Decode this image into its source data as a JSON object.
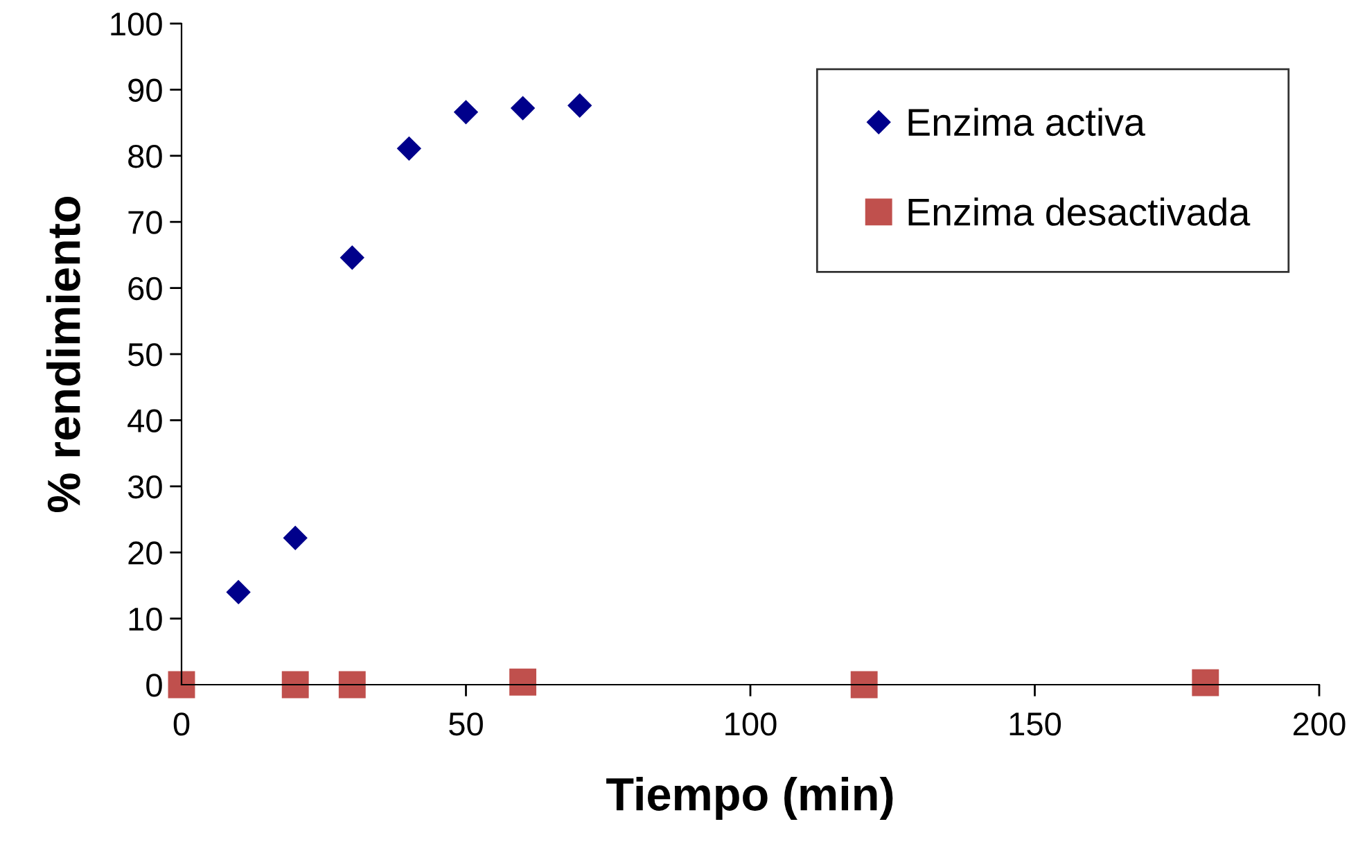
{
  "chart_data": {
    "type": "scatter",
    "xlabel": "Tiempo (min)",
    "ylabel": "% rendimiento",
    "series": [
      {
        "name": "Enzima activa",
        "color": "#00008b",
        "marker": "diamond",
        "x": [
          10,
          20,
          30,
          40,
          50,
          60,
          70
        ],
        "values": [
          14.0,
          22.2,
          64.6,
          81.1,
          86.6,
          87.2,
          87.6
        ]
      },
      {
        "name": "Enzima desactivada",
        "color": "#c0504d",
        "marker": "square",
        "x": [
          0,
          20,
          30,
          60,
          120,
          180
        ],
        "values": [
          0,
          0,
          0,
          0.4,
          0,
          0.3
        ]
      }
    ],
    "xlim": [
      0,
      200
    ],
    "xticks": [
      0,
      50,
      100,
      150,
      200
    ],
    "ylim": [
      0,
      100
    ],
    "yticks": [
      0,
      10,
      20,
      30,
      40,
      50,
      60,
      70,
      80,
      90,
      100
    ],
    "grid": false,
    "legend": "top right"
  }
}
